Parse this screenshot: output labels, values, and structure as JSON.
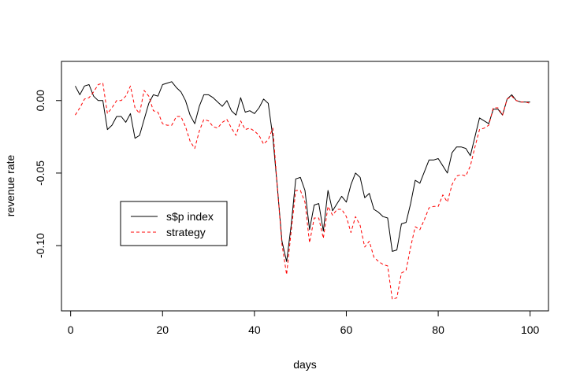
{
  "chart_data": {
    "type": "line",
    "title": "",
    "xlabel": "days",
    "ylabel": "revenue rate",
    "xlim": [
      -2,
      104
    ],
    "ylim": [
      -0.145,
      0.027
    ],
    "x_ticks": [
      0,
      20,
      40,
      60,
      80,
      100
    ],
    "x_tick_labels": [
      "0",
      "20",
      "40",
      "60",
      "80",
      "100"
    ],
    "y_ticks": [
      0.0,
      -0.05,
      -0.1
    ],
    "y_tick_labels": [
      "0.00",
      "-0.05",
      "-0.10"
    ],
    "grid": false,
    "legend_position": "left-middle",
    "x": [
      1,
      2,
      3,
      4,
      5,
      6,
      7,
      8,
      9,
      10,
      11,
      12,
      13,
      14,
      15,
      16,
      17,
      18,
      19,
      20,
      21,
      22,
      23,
      24,
      25,
      26,
      27,
      28,
      29,
      30,
      31,
      32,
      33,
      34,
      35,
      36,
      37,
      38,
      39,
      40,
      41,
      42,
      43,
      44,
      45,
      46,
      47,
      48,
      49,
      50,
      51,
      52,
      53,
      54,
      55,
      56,
      57,
      58,
      59,
      60,
      61,
      62,
      63,
      64,
      65,
      66,
      67,
      68,
      69,
      70,
      71,
      72,
      73,
      74,
      75,
      76,
      77,
      78,
      79,
      80,
      81,
      82,
      83,
      84,
      85,
      86,
      87,
      88,
      89,
      90,
      91,
      92,
      93,
      94,
      95,
      96,
      97,
      98,
      99,
      100
    ],
    "series": [
      {
        "name": "s$p index",
        "color": "#000000",
        "style": "solid",
        "values": [
          0.01,
          0.004,
          0.01,
          0.011,
          0.003,
          0.0,
          0.0,
          -0.02,
          -0.017,
          -0.011,
          -0.011,
          -0.015,
          -0.009,
          -0.026,
          -0.024,
          -0.013,
          -0.002,
          0.004,
          0.003,
          0.011,
          0.012,
          0.013,
          0.009,
          0.006,
          0.0,
          -0.01,
          -0.016,
          -0.004,
          0.004,
          0.004,
          0.002,
          -0.001,
          -0.004,
          0.0,
          -0.007,
          -0.01,
          0.002,
          -0.008,
          -0.007,
          -0.009,
          -0.005,
          0.001,
          -0.002,
          -0.025,
          -0.06,
          -0.097,
          -0.111,
          -0.086,
          -0.054,
          -0.053,
          -0.062,
          -0.089,
          -0.072,
          -0.071,
          -0.09,
          -0.062,
          -0.076,
          -0.071,
          -0.066,
          -0.07,
          -0.058,
          -0.05,
          -0.053,
          -0.067,
          -0.064,
          -0.075,
          -0.077,
          -0.08,
          -0.081,
          -0.104,
          -0.103,
          -0.085,
          -0.084,
          -0.071,
          -0.055,
          -0.057,
          -0.049,
          -0.041,
          -0.041,
          -0.04,
          -0.045,
          -0.05,
          -0.036,
          -0.032,
          -0.032,
          -0.033,
          -0.038,
          -0.025,
          -0.012,
          -0.014,
          -0.016,
          -0.006,
          -0.006,
          -0.01,
          0.001,
          0.004,
          0.0,
          -0.001,
          -0.001,
          -0.001
        ]
      },
      {
        "name": "strategy",
        "color": "#ff0000",
        "style": "dashed",
        "values": [
          -0.01,
          -0.005,
          0.001,
          0.002,
          0.006,
          0.011,
          0.012,
          -0.009,
          -0.005,
          0.0,
          0.0,
          0.003,
          0.01,
          -0.005,
          -0.009,
          0.007,
          0.003,
          -0.007,
          -0.008,
          -0.016,
          -0.017,
          -0.017,
          -0.011,
          -0.011,
          -0.018,
          -0.028,
          -0.033,
          -0.021,
          -0.013,
          -0.014,
          -0.018,
          -0.019,
          -0.015,
          -0.013,
          -0.019,
          -0.024,
          -0.014,
          -0.02,
          -0.019,
          -0.021,
          -0.024,
          -0.03,
          -0.027,
          -0.019,
          -0.06,
          -0.099,
          -0.12,
          -0.09,
          -0.062,
          -0.062,
          -0.07,
          -0.098,
          -0.081,
          -0.081,
          -0.095,
          -0.073,
          -0.079,
          -0.075,
          -0.075,
          -0.08,
          -0.091,
          -0.08,
          -0.086,
          -0.101,
          -0.097,
          -0.108,
          -0.111,
          -0.113,
          -0.114,
          -0.137,
          -0.136,
          -0.119,
          -0.117,
          -0.101,
          -0.087,
          -0.089,
          -0.082,
          -0.074,
          -0.073,
          -0.073,
          -0.065,
          -0.07,
          -0.058,
          -0.052,
          -0.051,
          -0.052,
          -0.045,
          -0.032,
          -0.02,
          -0.019,
          -0.017,
          -0.005,
          -0.005,
          -0.01,
          0.001,
          0.003,
          0.0,
          -0.001,
          -0.001,
          -0.002
        ]
      }
    ]
  }
}
